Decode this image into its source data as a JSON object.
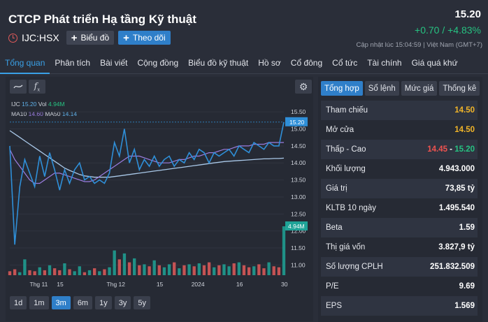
{
  "header": {
    "title": "CTCP Phát triển Hạ tầng Kỹ thuật",
    "ticker": "IJC:HSX",
    "chart_button": "Biểu đồ",
    "follow_button": "Theo dõi",
    "price": "15.20",
    "change": "+0.70 / +4.83%",
    "updated": "Cập nhật lúc   15:04:59 | Việt Nam (GMT+7)"
  },
  "nav": {
    "tabs": [
      "Tổng quan",
      "Phân tích",
      "Bài viết",
      "Cộng đồng",
      "Biểu đồ kỹ thuật",
      "Hồ sơ",
      "Cổ đông",
      "Cổ tức",
      "Tài chính",
      "Giá quá khứ"
    ],
    "active": 0
  },
  "chart": {
    "legend": {
      "symbol": "IJC",
      "price": "15.20",
      "vol_label": "Vol",
      "vol": "4.94M",
      "ma10_label": "MA10",
      "ma10": "14.60",
      "ma50_label": "MA50",
      "ma50": "14.14"
    },
    "ranges": [
      "1d",
      "1m",
      "3m",
      "6m",
      "1y",
      "3y",
      "5y"
    ],
    "active_range": "3m",
    "colors": {
      "price": "#2f8fd8",
      "ma10": "#9b7de0",
      "ma50": "#a9c8e8",
      "up": "#1fa397",
      "down": "#e05a5a"
    }
  },
  "chart_data": {
    "type": "line",
    "y_ticks": [
      "15.50",
      "15.00",
      "14.50",
      "14.00",
      "13.50",
      "13.00",
      "12.50",
      "12.00",
      "11.50",
      "11.00"
    ],
    "x_ticks": [
      "Thg 11",
      "15",
      "Thg 12",
      "15",
      "2024",
      "16",
      "30"
    ],
    "last_price_label": "15.20",
    "last_volume_label": "4.94M",
    "ylim": [
      10.7,
      15.75
    ],
    "price": [
      14.5,
      11.6,
      13.3,
      14.1,
      13.7,
      13.3,
      14.2,
      13.6,
      14.3,
      13.8,
      13.2,
      13.8,
      13.4,
      13.8,
      14.0,
      13.5,
      13.6,
      13.4,
      13.5,
      13.4,
      13.7,
      14.6,
      14.2,
      15.0,
      14.0,
      14.4,
      13.8,
      14.1,
      13.9,
      14.2,
      13.9,
      14.1,
      14.2,
      13.9,
      14.1,
      14.0,
      14.3,
      14.1,
      14.4,
      14.3,
      14.0,
      14.3,
      14.2,
      14.3,
      14.4,
      14.2,
      14.5,
      14.4,
      14.3,
      14.6,
      14.5,
      14.4,
      14.6,
      14.5,
      14.5,
      15.2
    ],
    "ma10": [
      14.4,
      14.1,
      13.9,
      13.7,
      13.5,
      13.4,
      13.4,
      13.5,
      13.6,
      13.7,
      13.7,
      13.65,
      13.6,
      13.55,
      13.5,
      13.45,
      13.45,
      13.5,
      13.6,
      13.7,
      13.8,
      13.9,
      14.0,
      14.1,
      14.2,
      14.2,
      14.2,
      14.15,
      14.1,
      14.05,
      14.0,
      14.0,
      14.0,
      14.05,
      14.1,
      14.1,
      14.15,
      14.2,
      14.2,
      14.25,
      14.3,
      14.3,
      14.35,
      14.4,
      14.4,
      14.45,
      14.5,
      14.5,
      14.5,
      14.55,
      14.55,
      14.55,
      14.6,
      14.6,
      14.6,
      14.6
    ],
    "ma50": [
      14.95,
      14.85,
      14.75,
      14.65,
      14.55,
      14.45,
      14.35,
      14.25,
      14.15,
      14.05,
      13.95,
      13.85,
      13.78,
      13.72,
      13.66,
      13.62,
      13.6,
      13.58,
      13.58,
      13.58,
      13.58,
      13.6,
      13.62,
      13.64,
      13.66,
      13.68,
      13.7,
      13.72,
      13.74,
      13.76,
      13.78,
      13.8,
      13.82,
      13.84,
      13.86,
      13.88,
      13.9,
      13.92,
      13.94,
      13.96,
      13.98,
      14.0,
      14.02,
      14.04,
      14.05,
      14.06,
      14.07,
      14.08,
      14.09,
      14.1,
      14.11,
      14.12,
      14.12,
      14.13,
      14.13,
      14.14
    ],
    "volume": [
      0.4,
      0.6,
      0.3,
      1.6,
      0.5,
      0.4,
      0.8,
      0.5,
      1.0,
      0.7,
      0.5,
      1.2,
      0.6,
      0.4,
      0.9,
      0.3,
      0.5,
      0.7,
      0.4,
      0.6,
      0.8,
      2.5,
      1.6,
      2.2,
      1.3,
      1.7,
      1.0,
      1.1,
      0.9,
      1.5,
      1.0,
      0.8,
      1.1,
      1.3,
      0.7,
      1.0,
      1.1,
      0.9,
      1.2,
      1.0,
      1.3,
      0.8,
      1.0,
      1.1,
      0.9,
      1.2,
      1.3,
      1.0,
      0.8,
      0.9,
      1.1,
      0.7,
      1.3,
      0.9,
      0.8,
      4.94
    ],
    "volume_up": [
      false,
      false,
      true,
      true,
      false,
      false,
      true,
      false,
      true,
      false,
      false,
      true,
      false,
      true,
      true,
      false,
      true,
      false,
      true,
      false,
      true,
      true,
      false,
      true,
      false,
      true,
      false,
      true,
      false,
      true,
      false,
      true,
      true,
      false,
      true,
      false,
      true,
      false,
      true,
      false,
      false,
      true,
      false,
      true,
      true,
      false,
      true,
      false,
      false,
      true,
      false,
      false,
      true,
      false,
      false,
      true
    ]
  },
  "stats": {
    "tabs": [
      "Tổng hợp",
      "Sổ lệnh",
      "Mức giá",
      "Thống kê"
    ],
    "active_tab": 0,
    "rows": [
      {
        "label": "Tham chiếu",
        "value": "14.50"
      },
      {
        "label": "Mở cửa",
        "value": "14.50"
      },
      {
        "label": "Thấp - Cao",
        "low": "14.45",
        "sep": " - ",
        "high": "15.20"
      },
      {
        "label": "Khối lượng",
        "value": "4.943.000"
      },
      {
        "label": "Giá trị",
        "value": "73,85 tỷ"
      },
      {
        "label": "KLTB 10 ngày",
        "value": "1.495.540"
      },
      {
        "label": "Beta",
        "value": "1.59"
      },
      {
        "label": "Thị giá vốn",
        "value": "3.827,9 tỷ"
      },
      {
        "label": "Số lượng CPLH",
        "value": "251.832.509"
      },
      {
        "label": "P/E",
        "value": "9.69"
      },
      {
        "label": "EPS",
        "value": "1.569"
      }
    ]
  }
}
